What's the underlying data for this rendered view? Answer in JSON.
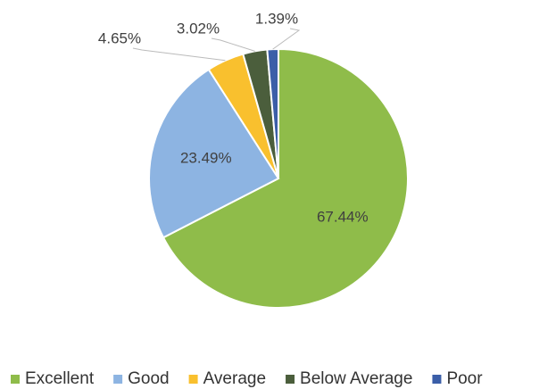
{
  "chart_data": {
    "type": "pie",
    "categories": [
      "Excellent",
      "Good",
      "Average",
      "Below Average",
      "Poor"
    ],
    "values": [
      67.44,
      23.49,
      4.65,
      3.02,
      1.39
    ],
    "value_labels": [
      "67.44%",
      "23.49%",
      "4.65%",
      "3.02%",
      "1.39%"
    ],
    "colors": [
      "#8fbc4a",
      "#8db4e2",
      "#f9c02e",
      "#4b5e3c",
      "#3b5ea8"
    ],
    "legend": "bottom"
  }
}
